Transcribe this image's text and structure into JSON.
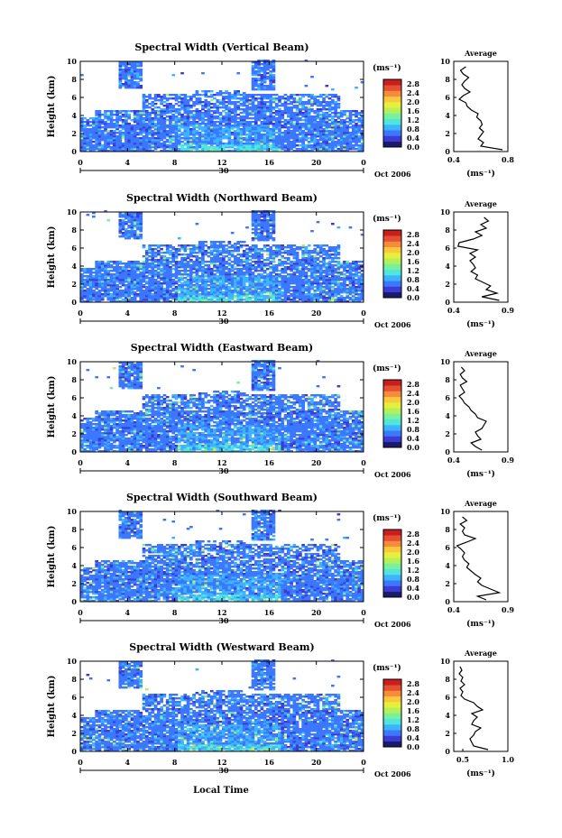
{
  "figure": {
    "xlabel": "Local Time",
    "date_label": "Oct 2006",
    "day_marker": "30"
  },
  "colorbar": {
    "unit": "(ms⁻¹)",
    "ticks": [
      "0.0",
      "0.4",
      "0.8",
      "1.2",
      "1.6",
      "2.0",
      "2.4",
      "2.8"
    ],
    "range": [
      0.0,
      3.0
    ],
    "colors": [
      "#1b1b6e",
      "#3c3cd2",
      "#3c78ff",
      "#3cb4ff",
      "#50e6dc",
      "#78f09c",
      "#b4f05a",
      "#e6f03c",
      "#fac83c",
      "#f58c3c",
      "#e65032",
      "#c81e1e"
    ]
  },
  "chart_data": [
    {
      "type": "heatmap",
      "title": "Spectral Width (Vertical Beam)",
      "ylabel": "Height (km)",
      "x_ticks": [
        "0",
        "4",
        "8",
        "12",
        "16",
        "20",
        "0"
      ],
      "y_ticks": [
        "0",
        "2",
        "4",
        "6",
        "8",
        "10"
      ],
      "xlim": [
        0,
        24
      ],
      "ylim": [
        0,
        10
      ],
      "avg_title": "Average",
      "avg_xlabel": "(ms⁻¹)",
      "avg_xlim": [
        0.4,
        0.8
      ],
      "avg_xticks": [
        "0.4",
        "0.8"
      ],
      "avg_height": [
        0.2,
        0.6,
        1.0,
        1.4,
        1.8,
        2.2,
        2.6,
        3.0,
        3.4,
        3.8,
        4.2,
        4.6,
        5.0,
        5.4,
        5.8,
        6.2,
        6.6,
        7.0,
        7.4,
        7.8,
        8.2,
        8.6,
        9.0,
        9.4
      ],
      "avg_width": [
        0.76,
        0.6,
        0.62,
        0.58,
        0.6,
        0.62,
        0.59,
        0.61,
        0.6,
        0.57,
        0.58,
        0.53,
        0.5,
        0.49,
        0.44,
        0.47,
        0.52,
        0.48,
        0.46,
        0.48,
        0.51,
        0.47,
        0.45,
        0.49
      ]
    },
    {
      "type": "heatmap",
      "title": "Spectral Width (Northward Beam)",
      "ylabel": "Height (km)",
      "x_ticks": [
        "0",
        "4",
        "8",
        "12",
        "16",
        "20",
        "0"
      ],
      "y_ticks": [
        "0",
        "2",
        "4",
        "6",
        "8",
        "10"
      ],
      "xlim": [
        0,
        24
      ],
      "ylim": [
        0,
        10
      ],
      "avg_title": "Average",
      "avg_xlabel": "(ms⁻¹)",
      "avg_xlim": [
        0.4,
        0.9
      ],
      "avg_xticks": [
        "0.4",
        "0.9"
      ],
      "avg_height": [
        0.2,
        0.6,
        1.0,
        1.4,
        1.8,
        2.2,
        2.6,
        3.0,
        3.4,
        3.8,
        4.2,
        4.6,
        5.0,
        5.4,
        5.8,
        6.2,
        6.6,
        7.0,
        7.4,
        7.8,
        8.2,
        8.6,
        9.0,
        9.4
      ],
      "avg_width": [
        0.82,
        0.66,
        0.8,
        0.7,
        0.74,
        0.67,
        0.6,
        0.62,
        0.56,
        0.6,
        0.58,
        0.55,
        0.6,
        0.55,
        0.62,
        0.44,
        0.45,
        0.58,
        0.66,
        0.6,
        0.7,
        0.65,
        0.72,
        0.68
      ]
    },
    {
      "type": "heatmap",
      "title": "Spectral Width (Eastward Beam)",
      "ylabel": "Height (km)",
      "x_ticks": [
        "0",
        "4",
        "8",
        "12",
        "16",
        "20",
        "0"
      ],
      "y_ticks": [
        "0",
        "2",
        "4",
        "6",
        "8",
        "10"
      ],
      "xlim": [
        0,
        24
      ],
      "ylim": [
        0,
        10
      ],
      "avg_title": "Average",
      "avg_xlabel": "(ms⁻¹)",
      "avg_xlim": [
        0.4,
        0.9
      ],
      "avg_xticks": [
        "0.4",
        "0.9"
      ],
      "avg_height": [
        0.2,
        0.6,
        1.0,
        1.4,
        1.8,
        2.2,
        2.6,
        3.0,
        3.4,
        3.8,
        4.2,
        4.6,
        5.0,
        5.4,
        5.8,
        6.2,
        6.6,
        7.0,
        7.4,
        7.8,
        8.2,
        8.6,
        9.0,
        9.4
      ],
      "avg_width": [
        0.66,
        0.6,
        0.56,
        0.65,
        0.62,
        0.6,
        0.66,
        0.68,
        0.7,
        0.62,
        0.6,
        0.56,
        0.54,
        0.5,
        0.48,
        0.45,
        0.5,
        0.48,
        0.46,
        0.52,
        0.48,
        0.46,
        0.5,
        0.47
      ]
    },
    {
      "type": "heatmap",
      "title": "Spectral Width (Southward Beam)",
      "ylabel": "Height (km)",
      "x_ticks": [
        "0",
        "4",
        "8",
        "12",
        "16",
        "20",
        "0"
      ],
      "y_ticks": [
        "0",
        "2",
        "4",
        "6",
        "8",
        "10"
      ],
      "xlim": [
        0,
        24
      ],
      "ylim": [
        0,
        10
      ],
      "avg_title": "Average",
      "avg_xlabel": "(ms⁻¹)",
      "avg_xlim": [
        0.4,
        0.9
      ],
      "avg_xticks": [
        "0.4",
        "0.9"
      ],
      "avg_height": [
        0.2,
        0.6,
        1.0,
        1.4,
        1.8,
        2.2,
        2.6,
        3.0,
        3.4,
        3.8,
        4.2,
        4.6,
        5.0,
        5.4,
        5.8,
        6.2,
        6.6,
        7.0,
        7.4,
        7.8,
        8.2,
        8.6,
        9.0,
        9.4
      ],
      "avg_width": [
        0.7,
        0.62,
        0.82,
        0.74,
        0.66,
        0.62,
        0.65,
        0.6,
        0.56,
        0.52,
        0.54,
        0.5,
        0.48,
        0.5,
        0.47,
        0.43,
        0.52,
        0.6,
        0.5,
        0.48,
        0.5,
        0.46,
        0.52,
        0.48
      ]
    },
    {
      "type": "heatmap",
      "title": "Spectral Width (Westward Beam)",
      "ylabel": "Height (km)",
      "x_ticks": [
        "0",
        "4",
        "8",
        "12",
        "16",
        "20",
        "0"
      ],
      "y_ticks": [
        "0",
        "2",
        "4",
        "6",
        "8",
        "10"
      ],
      "xlim": [
        0,
        24
      ],
      "ylim": [
        0,
        10
      ],
      "avg_title": "Average",
      "avg_xlabel": "(ms⁻¹)",
      "avg_xlim": [
        0.4,
        1.0
      ],
      "avg_xticks": [
        "0.5",
        "1.0"
      ],
      "avg_height": [
        0.2,
        0.6,
        1.0,
        1.4,
        1.8,
        2.2,
        2.6,
        3.0,
        3.4,
        3.8,
        4.2,
        4.6,
        5.0,
        5.4,
        5.8,
        6.2,
        6.6,
        7.0,
        7.4,
        7.8,
        8.2,
        8.6,
        9.0,
        9.4
      ],
      "avg_width": [
        0.78,
        0.62,
        0.6,
        0.58,
        0.62,
        0.64,
        0.7,
        0.6,
        0.62,
        0.66,
        0.6,
        0.72,
        0.66,
        0.62,
        0.52,
        0.48,
        0.5,
        0.47,
        0.52,
        0.48,
        0.5,
        0.46,
        0.49,
        0.47
      ]
    }
  ]
}
